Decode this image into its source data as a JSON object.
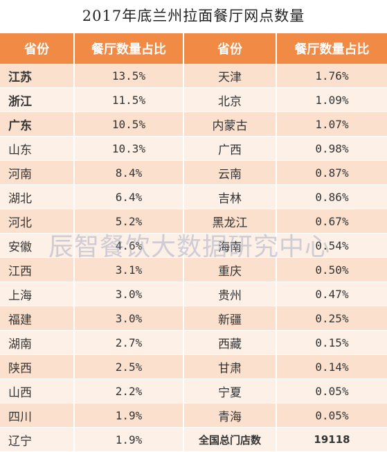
{
  "title": "2017年底兰州拉面餐厅网点数量",
  "headers": [
    "省份",
    "餐厅数量占比",
    "省份",
    "餐厅数量占比"
  ],
  "rows": [
    {
      "p1": "江苏",
      "v1": "13.5%",
      "p2": "天津",
      "v2": "1.76%",
      "bold": true
    },
    {
      "p1": "浙江",
      "v1": "11.5%",
      "p2": "北京",
      "v2": "1.09%",
      "bold": true
    },
    {
      "p1": "广东",
      "v1": "10.5%",
      "p2": "内蒙古",
      "v2": "1.07%",
      "bold": true
    },
    {
      "p1": "山东",
      "v1": "10.3%",
      "p2": "广西",
      "v2": "0.98%"
    },
    {
      "p1": "河南",
      "v1": "8.4%",
      "p2": "云南",
      "v2": "0.87%"
    },
    {
      "p1": "湖北",
      "v1": "6.4%",
      "p2": "吉林",
      "v2": "0.86%"
    },
    {
      "p1": "河北",
      "v1": "5.2%",
      "p2": "黑龙江",
      "v2": "0.67%"
    },
    {
      "p1": "安徽",
      "v1": "4.6%",
      "p2": "海南",
      "v2": "0.54%"
    },
    {
      "p1": "江西",
      "v1": "3.1%",
      "p2": "重庆",
      "v2": "0.50%"
    },
    {
      "p1": "上海",
      "v1": "3.0%",
      "p2": "贵州",
      "v2": "0.47%"
    },
    {
      "p1": "福建",
      "v1": "3.0%",
      "p2": "新疆",
      "v2": "0.25%"
    },
    {
      "p1": "湖南",
      "v1": "2.7%",
      "p2": "西藏",
      "v2": "0.15%"
    },
    {
      "p1": "陕西",
      "v1": "2.5%",
      "p2": "甘肃",
      "v2": "0.14%"
    },
    {
      "p1": "山西",
      "v1": "2.2%",
      "p2": "宁夏",
      "v2": "0.05%"
    },
    {
      "p1": "四川",
      "v1": "1.9%",
      "p2": "青海",
      "v2": "0.05%"
    }
  ],
  "last_row": {
    "p1": "辽宁",
    "v1": "1.9%",
    "total_label": "全国总门店数",
    "total_value": "19118"
  },
  "watermark": "辰智餐饮大数据研究中心",
  "colors": {
    "header": "#f08a45",
    "row_dark": "#fbe0cd",
    "row_light": "#fdf0e6"
  }
}
